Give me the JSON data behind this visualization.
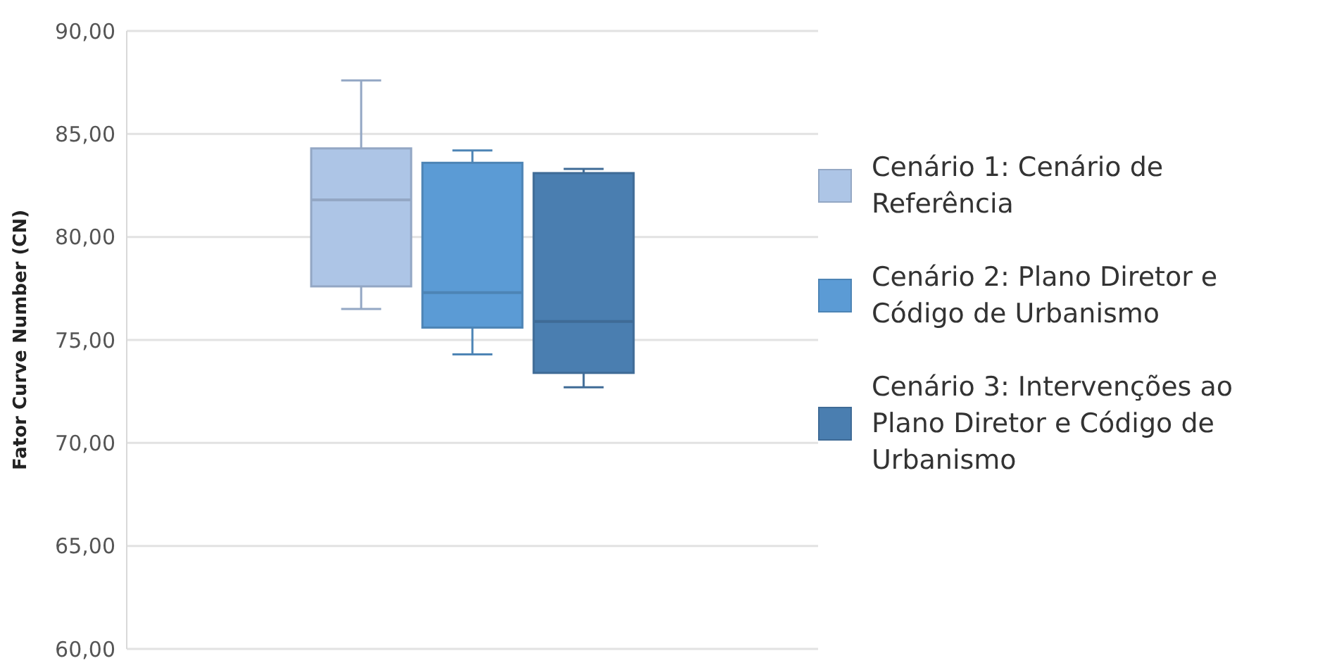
{
  "chart_data": {
    "type": "box",
    "ylabel": "Fator Curve Number (CN)",
    "categories": [
      null
    ],
    "series": [
      {
        "name": "Cenário 1: Cenário de Referência",
        "color": "#adc5e6",
        "boxes": [
          {
            "low": 76.5,
            "q1": 77.6,
            "median": 81.8,
            "q3": 84.3,
            "high": 87.6
          }
        ]
      },
      {
        "name": "Cenário 2: Plano Diretor e Código de Urbanismo",
        "color": "#5b9bd5",
        "boxes": [
          {
            "low": 74.3,
            "q1": 75.6,
            "median": 77.3,
            "q3": 83.6,
            "high": 84.2
          }
        ]
      },
      {
        "name": "Cenário 3: Intervenções ao Plano Diretor e Código de Urbanismo",
        "color": "#4a7eb0",
        "boxes": [
          {
            "low": 72.7,
            "q1": 73.4,
            "median": 75.9,
            "q3": 83.1,
            "high": 83.3
          }
        ]
      }
    ],
    "ylim": [
      60,
      90
    ],
    "yticks": [
      {
        "value": 60,
        "label": "60,00"
      },
      {
        "value": 65,
        "label": "65,00"
      },
      {
        "value": 70,
        "label": "70,00"
      },
      {
        "value": 75,
        "label": "75,00"
      },
      {
        "value": 80,
        "label": "80,00"
      },
      {
        "value": 85,
        "label": "85,00"
      },
      {
        "value": 90,
        "label": "90,00"
      }
    ],
    "grid": "y",
    "legend": "right"
  }
}
